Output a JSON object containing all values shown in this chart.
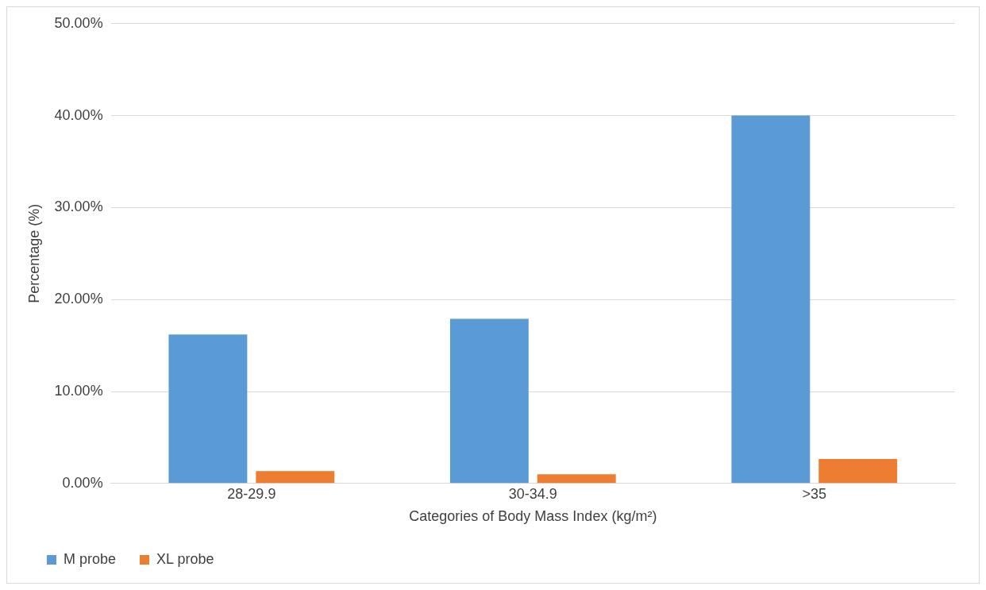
{
  "chart_data": {
    "type": "bar",
    "xlabel": "Categories of Body Mass Index (kg/m²)",
    "ylabel": "Percentage (%)",
    "categories": [
      "28-29.9",
      "30-34.9",
      ">35"
    ],
    "series": [
      {
        "name": "M probe",
        "color": "#5b9bd5",
        "values": [
          16.2,
          17.9,
          40.0
        ]
      },
      {
        "name": "XL probe",
        "color": "#ed7d31",
        "values": [
          1.35,
          1.0,
          2.65
        ]
      }
    ],
    "ylim": [
      0,
      50
    ],
    "yticks": [
      {
        "value": 0,
        "label": "0.00%"
      },
      {
        "value": 10,
        "label": "10.00%"
      },
      {
        "value": 20,
        "label": "20.00%"
      },
      {
        "value": 30,
        "label": "30.00%"
      },
      {
        "value": 40,
        "label": "40.00%"
      },
      {
        "value": 50,
        "label": "50.00%"
      }
    ],
    "grid": "y",
    "legend": "bottom left"
  }
}
